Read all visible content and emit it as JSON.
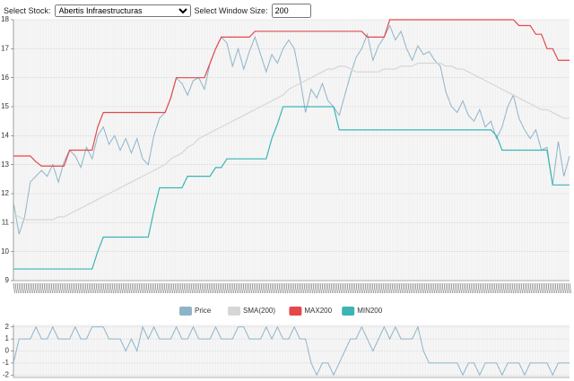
{
  "controls": {
    "stock_label": "Select Stock:",
    "stock_value": "Abertis Infraestructuras",
    "window_label": "Select Window Size:",
    "window_value": 200
  },
  "chart_data": [
    {
      "type": "line",
      "ylim": [
        9,
        18
      ],
      "yticks": [
        9,
        10,
        11,
        12,
        13,
        14,
        15,
        16,
        17,
        18
      ],
      "grid": true,
      "legend": "bottom",
      "series": [
        {
          "name": "Price",
          "color": "#8fb4c9",
          "values": [
            11.7,
            10.6,
            11.2,
            12.4,
            12.6,
            12.8,
            12.6,
            13.0,
            12.4,
            13.1,
            13.5,
            13.3,
            12.9,
            13.6,
            13.2,
            14.0,
            14.3,
            13.7,
            14.0,
            13.5,
            13.9,
            13.4,
            13.9,
            13.2,
            13.0,
            14.0,
            14.6,
            14.8,
            15.3,
            16.0,
            15.8,
            15.4,
            15.9,
            16.0,
            15.6,
            16.5,
            17.0,
            17.4,
            17.2,
            16.4,
            17.0,
            16.3,
            16.9,
            17.4,
            16.8,
            16.2,
            16.8,
            16.5,
            17.0,
            17.3,
            17.0,
            16.0,
            14.8,
            15.6,
            15.3,
            15.8,
            15.2,
            15.0,
            14.7,
            15.4,
            16.1,
            16.7,
            17.0,
            17.5,
            16.6,
            17.1,
            17.4,
            17.8,
            17.3,
            17.6,
            17.0,
            16.6,
            17.1,
            16.8,
            16.9,
            16.6,
            16.4,
            15.5,
            15.0,
            14.8,
            15.2,
            14.7,
            14.5,
            14.9,
            14.3,
            14.5,
            13.9,
            14.3,
            15.0,
            15.4,
            14.6,
            14.2,
            13.9,
            14.2,
            13.5,
            13.6,
            12.3,
            13.8,
            12.6,
            13.3
          ]
        },
        {
          "name": "SMA(200)",
          "color": "#d6d6d6",
          "values": [
            11.3,
            11.2,
            11.1,
            11.1,
            11.1,
            11.1,
            11.1,
            11.1,
            11.2,
            11.2,
            11.3,
            11.4,
            11.5,
            11.6,
            11.7,
            11.8,
            11.9,
            12.0,
            12.1,
            12.2,
            12.3,
            12.4,
            12.5,
            12.6,
            12.7,
            12.8,
            12.9,
            13.0,
            13.2,
            13.3,
            13.4,
            13.6,
            13.7,
            13.9,
            14.0,
            14.1,
            14.2,
            14.3,
            14.4,
            14.5,
            14.6,
            14.7,
            14.8,
            14.9,
            15.0,
            15.1,
            15.2,
            15.3,
            15.4,
            15.6,
            15.7,
            15.8,
            15.9,
            16.0,
            16.1,
            16.2,
            16.3,
            16.3,
            16.4,
            16.4,
            16.3,
            16.2,
            16.2,
            16.2,
            16.2,
            16.2,
            16.3,
            16.3,
            16.3,
            16.4,
            16.4,
            16.4,
            16.5,
            16.5,
            16.5,
            16.5,
            16.5,
            16.4,
            16.4,
            16.3,
            16.3,
            16.2,
            16.1,
            16.0,
            15.9,
            15.8,
            15.7,
            15.6,
            15.5,
            15.4,
            15.3,
            15.2,
            15.1,
            15.0,
            14.9,
            14.9,
            14.8,
            14.7,
            14.6,
            14.6
          ]
        },
        {
          "name": "MAX200",
          "color": "#e5474b",
          "values": [
            13.3,
            13.3,
            13.3,
            13.3,
            13.1,
            12.95,
            12.95,
            12.95,
            12.95,
            12.95,
            13.5,
            13.5,
            13.5,
            13.5,
            13.5,
            14.3,
            14.8,
            14.8,
            14.8,
            14.8,
            14.8,
            14.8,
            14.8,
            14.8,
            14.8,
            14.8,
            14.8,
            14.8,
            15.3,
            16.0,
            16.0,
            16.0,
            16.0,
            16.0,
            16.0,
            16.5,
            17.0,
            17.4,
            17.4,
            17.4,
            17.4,
            17.4,
            17.4,
            17.6,
            17.6,
            17.6,
            17.6,
            17.6,
            17.6,
            17.6,
            17.6,
            17.6,
            17.6,
            17.6,
            17.6,
            17.6,
            17.6,
            17.6,
            17.6,
            17.6,
            17.6,
            17.6,
            17.6,
            17.4,
            17.4,
            17.4,
            17.4,
            18.0,
            18.0,
            18.0,
            18.0,
            18.0,
            18.0,
            18.0,
            18.0,
            18.0,
            18.0,
            18.0,
            18.0,
            18.0,
            18.0,
            18.0,
            18.0,
            18.0,
            18.0,
            18.0,
            18.0,
            18.0,
            18.0,
            18.0,
            17.8,
            17.8,
            17.8,
            17.5,
            17.5,
            17.0,
            17.0,
            16.6,
            16.6,
            16.6
          ]
        },
        {
          "name": "MIN200",
          "color": "#3cb4b4",
          "values": [
            9.4,
            9.4,
            9.4,
            9.4,
            9.4,
            9.4,
            9.4,
            9.4,
            9.4,
            9.4,
            9.4,
            9.4,
            9.4,
            9.4,
            9.4,
            10.0,
            10.5,
            10.5,
            10.5,
            10.5,
            10.5,
            10.5,
            10.5,
            10.5,
            10.5,
            11.4,
            12.2,
            12.2,
            12.2,
            12.2,
            12.2,
            12.6,
            12.6,
            12.6,
            12.6,
            12.6,
            12.9,
            12.9,
            13.2,
            13.2,
            13.2,
            13.2,
            13.2,
            13.2,
            13.2,
            13.2,
            13.9,
            14.4,
            15.0,
            15.0,
            15.0,
            15.0,
            15.0,
            15.0,
            15.0,
            15.0,
            15.0,
            15.0,
            14.2,
            14.2,
            14.2,
            14.2,
            14.2,
            14.2,
            14.2,
            14.2,
            14.2,
            14.2,
            14.2,
            14.2,
            14.2,
            14.2,
            14.2,
            14.2,
            14.2,
            14.2,
            14.2,
            14.2,
            14.2,
            14.2,
            14.2,
            14.2,
            14.2,
            14.2,
            14.2,
            14.2,
            14.0,
            13.5,
            13.5,
            13.5,
            13.5,
            13.5,
            13.5,
            13.5,
            13.5,
            13.5,
            12.3,
            12.3,
            12.3,
            12.3
          ]
        }
      ]
    },
    {
      "type": "line",
      "ylim": [
        -2.2,
        2.2
      ],
      "yticks": [
        -2,
        -1,
        0,
        1,
        2
      ],
      "grid": true,
      "series": [
        {
          "color": "#8fb4c9",
          "values": [
            -1,
            1,
            1,
            1,
            2,
            1,
            1,
            2,
            1,
            1,
            1,
            2,
            1,
            1,
            2,
            2,
            2,
            1,
            1,
            1,
            0,
            1,
            0,
            2,
            1,
            2,
            1,
            1,
            1,
            2,
            1,
            1,
            2,
            1,
            1,
            1,
            2,
            1,
            1,
            1,
            2,
            2,
            1,
            1,
            1,
            2,
            1,
            2,
            1,
            1,
            2,
            1,
            1,
            -1,
            -2,
            -1,
            -1,
            -2,
            -1,
            0,
            1,
            1,
            2,
            1,
            0,
            1,
            2,
            1,
            2,
            1,
            1,
            1,
            2,
            0,
            -1,
            -1,
            -1,
            -1,
            -1,
            -1,
            -2,
            -1,
            -1,
            -2,
            -1,
            -1,
            -1,
            -2,
            -1,
            -1,
            -1,
            -2,
            -1,
            -1,
            -1,
            -1,
            -2,
            -1,
            -1,
            -1
          ]
        }
      ]
    }
  ]
}
